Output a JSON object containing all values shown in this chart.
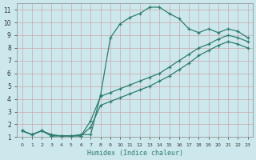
{
  "xlabel": "Humidex (Indice chaleur)",
  "bg_color": "#cde8ec",
  "grid_color": "#b0d4da",
  "line_color": "#2e7d6e",
  "xlim": [
    -0.5,
    23.5
  ],
  "ylim": [
    1,
    11.5
  ],
  "xticks": [
    0,
    1,
    2,
    3,
    4,
    5,
    6,
    7,
    8,
    9,
    10,
    11,
    12,
    13,
    14,
    15,
    16,
    17,
    18,
    19,
    20,
    21,
    22,
    23
  ],
  "yticks": [
    1,
    2,
    3,
    4,
    5,
    6,
    7,
    8,
    9,
    10,
    11
  ],
  "series1_x": [
    0,
    1,
    2,
    3,
    4,
    5,
    6,
    7,
    8,
    9,
    10,
    11,
    12,
    13,
    14,
    15,
    16,
    17,
    18,
    19,
    20,
    21,
    22,
    23
  ],
  "series1_y": [
    1.5,
    1.2,
    1.5,
    1.2,
    1.1,
    1.1,
    1.2,
    1.2,
    4.3,
    8.8,
    9.9,
    10.4,
    10.7,
    11.2,
    11.2,
    10.7,
    10.3,
    9.5,
    9.2,
    9.5,
    9.2,
    9.5,
    9.3,
    8.8
  ],
  "series2_x": [
    0,
    1,
    2,
    3,
    4,
    5,
    6,
    7,
    8,
    9,
    10,
    11,
    12,
    13,
    14,
    15,
    16,
    17,
    18,
    19,
    20,
    21,
    22,
    23
  ],
  "series2_y": [
    1.5,
    1.2,
    1.5,
    1.1,
    1.1,
    1.1,
    1.1,
    2.3,
    4.2,
    4.5,
    4.8,
    5.1,
    5.4,
    5.7,
    6.0,
    6.5,
    7.0,
    7.5,
    8.0,
    8.3,
    8.7,
    9.0,
    8.8,
    8.5
  ],
  "series3_x": [
    0,
    1,
    2,
    3,
    4,
    5,
    6,
    7,
    8,
    9,
    10,
    11,
    12,
    13,
    14,
    15,
    16,
    17,
    18,
    19,
    20,
    21,
    22,
    23
  ],
  "series3_y": [
    1.5,
    1.2,
    1.5,
    1.1,
    1.1,
    1.1,
    1.1,
    1.8,
    3.5,
    3.8,
    4.1,
    4.4,
    4.7,
    5.0,
    5.4,
    5.8,
    6.3,
    6.8,
    7.4,
    7.8,
    8.2,
    8.5,
    8.3,
    8.0
  ]
}
